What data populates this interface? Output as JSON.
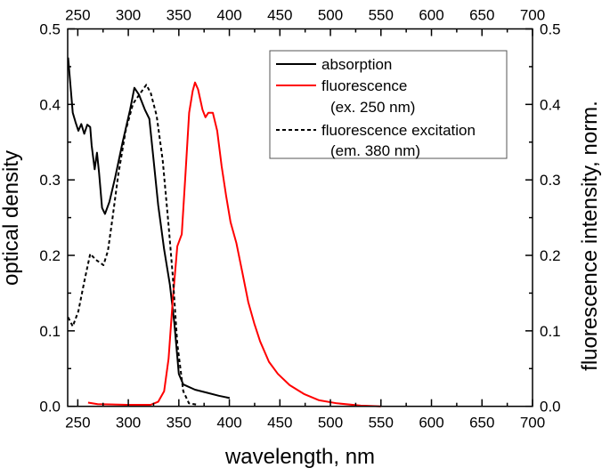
{
  "chart_data": {
    "type": "line",
    "xlabel": "wavelength, nm",
    "ylabel": "optical density",
    "ylabel_right": "fluorescence intensity, norm.",
    "xlim": [
      240,
      700
    ],
    "ylim": [
      0,
      0.5
    ],
    "ylim_right": [
      0,
      0.5
    ],
    "x_ticks": [
      250,
      300,
      350,
      400,
      450,
      500,
      550,
      600,
      650,
      700
    ],
    "y_ticks": [
      0.0,
      0.1,
      0.2,
      0.3,
      0.4,
      0.5
    ],
    "x_tick_labels": [
      "250",
      "300",
      "350",
      "400",
      "450",
      "500",
      "550",
      "600",
      "650",
      "700"
    ],
    "y_tick_labels": [
      "0.0",
      "0.1",
      "0.2",
      "0.3",
      "0.4",
      "0.5"
    ],
    "grid": false,
    "legend_position": "top-right",
    "legend": [
      {
        "label": "absorption",
        "sublabel": ""
      },
      {
        "label": "fluorescence",
        "sublabel": "(ex. 250 nm)"
      },
      {
        "label": "fluorescence excitation",
        "sublabel": "(em. 380 nm)"
      }
    ],
    "series": [
      {
        "name": "absorption",
        "color": "#000000",
        "dash": false,
        "points": [
          [
            240.4,
            0.462
          ],
          [
            245,
            0.389
          ],
          [
            247.7,
            0.377
          ],
          [
            250.6,
            0.365
          ],
          [
            253.5,
            0.374
          ],
          [
            256.4,
            0.361
          ],
          [
            259.4,
            0.373
          ],
          [
            262.3,
            0.37
          ],
          [
            263.7,
            0.346
          ],
          [
            266.7,
            0.314
          ],
          [
            269,
            0.336
          ],
          [
            271,
            0.31
          ],
          [
            274,
            0.263
          ],
          [
            276.9,
            0.255
          ],
          [
            281.3,
            0.271
          ],
          [
            287,
            0.303
          ],
          [
            294.4,
            0.35
          ],
          [
            301.8,
            0.393
          ],
          [
            306,
            0.422
          ],
          [
            310.5,
            0.413
          ],
          [
            316.4,
            0.393
          ],
          [
            320.8,
            0.381
          ],
          [
            325,
            0.326
          ],
          [
            329.5,
            0.267
          ],
          [
            335.4,
            0.208
          ],
          [
            341.2,
            0.161
          ],
          [
            345.6,
            0.11
          ],
          [
            350,
            0.043
          ],
          [
            354.4,
            0.029
          ],
          [
            366,
            0.022
          ],
          [
            377.8,
            0.018
          ],
          [
            389.5,
            0.014
          ],
          [
            400.3,
            0.011
          ]
        ]
      },
      {
        "name": "fluorescence",
        "color": "#ff0000",
        "dash": false,
        "points": [
          [
            260.2,
            0.005
          ],
          [
            269.6,
            0.003
          ],
          [
            298.8,
            0.002
          ],
          [
            322,
            0.002
          ],
          [
            329.5,
            0.006
          ],
          [
            335.4,
            0.02
          ],
          [
            339.8,
            0.063
          ],
          [
            344,
            0.141
          ],
          [
            348.5,
            0.212
          ],
          [
            352.9,
            0.228
          ],
          [
            356.7,
            0.31
          ],
          [
            360.2,
            0.389
          ],
          [
            363.7,
            0.418
          ],
          [
            366,
            0.429
          ],
          [
            369,
            0.42
          ],
          [
            373.4,
            0.393
          ],
          [
            376.3,
            0.383
          ],
          [
            379.2,
            0.389
          ],
          [
            383.6,
            0.389
          ],
          [
            388,
            0.365
          ],
          [
            392.4,
            0.318
          ],
          [
            396.8,
            0.279
          ],
          [
            401.2,
            0.244
          ],
          [
            407,
            0.216
          ],
          [
            412.9,
            0.177
          ],
          [
            418.7,
            0.138
          ],
          [
            424.6,
            0.11
          ],
          [
            430.4,
            0.086
          ],
          [
            439.2,
            0.059
          ],
          [
            448,
            0.043
          ],
          [
            459.7,
            0.028
          ],
          [
            474.3,
            0.016
          ],
          [
            488.9,
            0.008
          ],
          [
            506.4,
            0.004
          ],
          [
            530,
            0.001
          ],
          [
            550,
            0.0
          ]
        ]
      },
      {
        "name": "fluorescence excitation",
        "color": "#000000",
        "dash": true,
        "points": [
          [
            240.4,
            0.118
          ],
          [
            245,
            0.106
          ],
          [
            250.6,
            0.126
          ],
          [
            256.4,
            0.165
          ],
          [
            262.3,
            0.202
          ],
          [
            268,
            0.194
          ],
          [
            275.4,
            0.187
          ],
          [
            279.8,
            0.206
          ],
          [
            284.2,
            0.248
          ],
          [
            290,
            0.306
          ],
          [
            297.4,
            0.365
          ],
          [
            304.7,
            0.401
          ],
          [
            312,
            0.415
          ],
          [
            317.8,
            0.426
          ],
          [
            322.2,
            0.415
          ],
          [
            328,
            0.385
          ],
          [
            334,
            0.326
          ],
          [
            339.8,
            0.24
          ],
          [
            344,
            0.173
          ],
          [
            348.5,
            0.083
          ],
          [
            354.4,
            0.02
          ],
          [
            360,
            0.004
          ],
          [
            369,
            0.002
          ]
        ]
      }
    ]
  }
}
